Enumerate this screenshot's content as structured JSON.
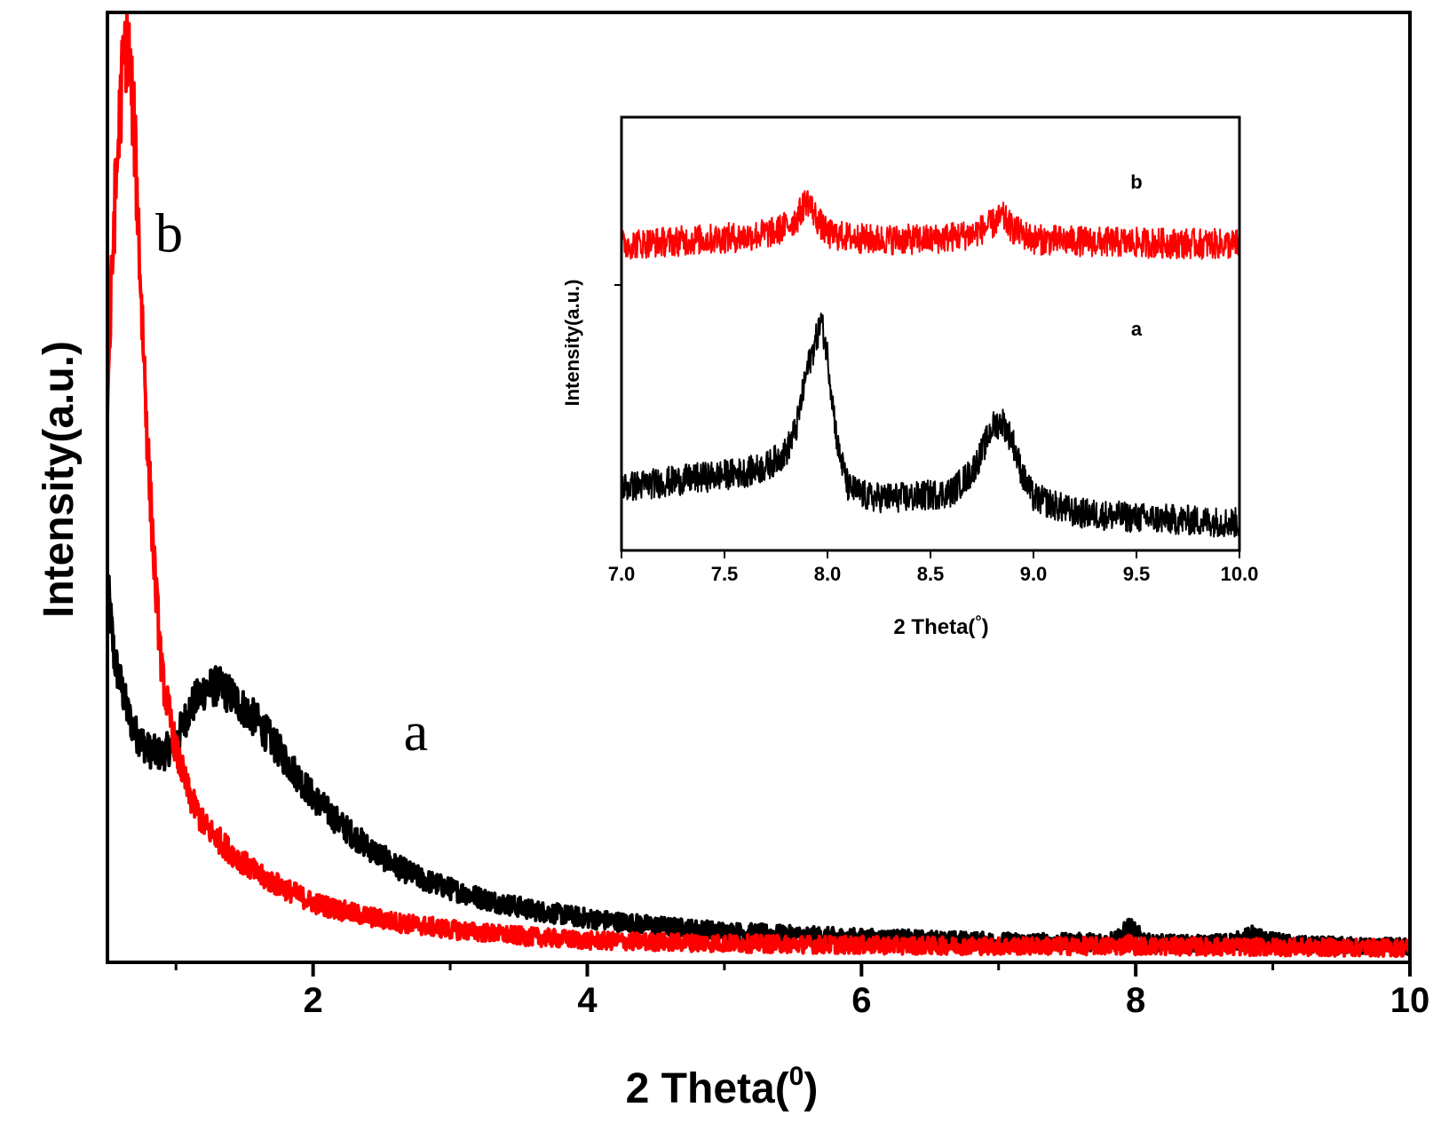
{
  "chart_data": [
    {
      "type": "line",
      "id": "main",
      "title": "",
      "xlabel": "2 Theta(",
      "xlabel_superscript": "0",
      "xlabel_suffix": ")",
      "ylabel": "Intensity(a.u.)",
      "xlim": [
        0.5,
        10
      ],
      "ylim": [
        0,
        100
      ],
      "x_ticks": [
        2,
        4,
        6,
        8,
        10
      ],
      "x_tick_labels": [
        "2",
        "4",
        "6",
        "8",
        "10"
      ],
      "x_minor_ticks": [
        1,
        3,
        5,
        7,
        9
      ],
      "grid": false,
      "series": [
        {
          "name": "a",
          "color": "#000000",
          "points": [
            [
              0.5,
              40
            ],
            [
              0.55,
              32
            ],
            [
              0.6,
              29
            ],
            [
              0.65,
              26
            ],
            [
              0.7,
              24
            ],
            [
              0.8,
              22
            ],
            [
              0.9,
              21.5
            ],
            [
              1.0,
              23
            ],
            [
              1.1,
              26.5
            ],
            [
              1.2,
              28.5
            ],
            [
              1.3,
              29
            ],
            [
              1.4,
              28
            ],
            [
              1.5,
              26.5
            ],
            [
              1.6,
              25
            ],
            [
              1.7,
              23
            ],
            [
              1.8,
              21
            ],
            [
              1.9,
              19
            ],
            [
              2.0,
              17
            ],
            [
              2.2,
              14
            ],
            [
              2.4,
              11.5
            ],
            [
              2.6,
              9.5
            ],
            [
              2.8,
              8
            ],
            [
              3.0,
              7
            ],
            [
              3.3,
              5.7
            ],
            [
              3.6,
              4.7
            ],
            [
              4.0,
              3.8
            ],
            [
              4.5,
              3
            ],
            [
              5.0,
              2.4
            ],
            [
              5.5,
              2
            ],
            [
              6.0,
              1.7
            ],
            [
              6.5,
              1.5
            ],
            [
              7.0,
              1.3
            ],
            [
              7.5,
              1.2
            ],
            [
              7.8,
              1.3
            ],
            [
              7.9,
              2
            ],
            [
              7.95,
              3
            ],
            [
              8.0,
              2.2
            ],
            [
              8.1,
              1.1
            ],
            [
              8.5,
              1
            ],
            [
              8.75,
              1.4
            ],
            [
              8.85,
              2
            ],
            [
              8.95,
              1.4
            ],
            [
              9.2,
              0.9
            ],
            [
              9.6,
              0.8
            ],
            [
              10.0,
              0.7
            ]
          ]
        },
        {
          "name": "b",
          "color": "#ff0000",
          "points": [
            [
              0.5,
              60
            ],
            [
              0.55,
              80
            ],
            [
              0.6,
              93
            ],
            [
              0.62,
              97
            ],
            [
              0.64,
              99
            ],
            [
              0.66,
              97
            ],
            [
              0.7,
              88
            ],
            [
              0.75,
              70
            ],
            [
              0.8,
              53
            ],
            [
              0.85,
              40
            ],
            [
              0.9,
              30
            ],
            [
              1.0,
              22
            ],
            [
              1.1,
              17
            ],
            [
              1.2,
              14
            ],
            [
              1.4,
              11
            ],
            [
              1.6,
              8.5
            ],
            [
              1.8,
              7
            ],
            [
              2.0,
              5.5
            ],
            [
              2.3,
              4.3
            ],
            [
              2.6,
              3.4
            ],
            [
              3.0,
              2.6
            ],
            [
              3.5,
              1.9
            ],
            [
              4.0,
              1.4
            ],
            [
              5.0,
              1.1
            ],
            [
              6.0,
              0.9
            ],
            [
              7.0,
              0.8
            ],
            [
              7.9,
              0.8
            ],
            [
              7.95,
              1.2
            ],
            [
              8.0,
              0.8
            ],
            [
              8.8,
              0.7
            ],
            [
              10.0,
              0.6
            ]
          ]
        }
      ],
      "annotations": [
        {
          "text": "b",
          "x": 0.95,
          "y": 76
        },
        {
          "text": "a",
          "x": 2.75,
          "y": 22
        }
      ]
    },
    {
      "type": "line",
      "id": "inset",
      "title": "",
      "xlabel": "2 Theta(",
      "xlabel_superscript": "°",
      "xlabel_suffix": ")",
      "ylabel": "Intensity(a.u.)",
      "xlim": [
        7.0,
        10.0
      ],
      "ylim": [
        0,
        100
      ],
      "x_ticks": [
        7.0,
        7.5,
        8.0,
        8.5,
        9.0,
        9.5,
        10.0
      ],
      "x_tick_labels": [
        "7.0",
        "7.5",
        "8.0",
        "8.5",
        "9.0",
        "9.5",
        "10.0"
      ],
      "y_ticks": [
        50
      ],
      "grid": false,
      "series": [
        {
          "name": "a",
          "color": "#000000",
          "points": [
            [
              7.0,
              10
            ],
            [
              7.2,
              11
            ],
            [
              7.4,
              12
            ],
            [
              7.6,
              13
            ],
            [
              7.7,
              14
            ],
            [
              7.8,
              17
            ],
            [
              7.85,
              22
            ],
            [
              7.9,
              33
            ],
            [
              7.95,
              40
            ],
            [
              7.97,
              43
            ],
            [
              8.0,
              36
            ],
            [
              8.05,
              18
            ],
            [
              8.1,
              10
            ],
            [
              8.2,
              8
            ],
            [
              8.4,
              8
            ],
            [
              8.6,
              9
            ],
            [
              8.7,
              13
            ],
            [
              8.75,
              17
            ],
            [
              8.8,
              22
            ],
            [
              8.85,
              23
            ],
            [
              8.9,
              19
            ],
            [
              8.95,
              12
            ],
            [
              9.0,
              8
            ],
            [
              9.2,
              5
            ],
            [
              9.5,
              4
            ],
            [
              10.0,
              3
            ]
          ]
        },
        {
          "name": "b",
          "color": "#ff0000",
          "points": [
            [
              7.0,
              58
            ],
            [
              7.2,
              58.5
            ],
            [
              7.4,
              59
            ],
            [
              7.6,
              59.5
            ],
            [
              7.75,
              60.5
            ],
            [
              7.85,
              63
            ],
            [
              7.9,
              67
            ],
            [
              7.95,
              63
            ],
            [
              8.0,
              60
            ],
            [
              8.2,
              59
            ],
            [
              8.5,
              59
            ],
            [
              8.7,
              60
            ],
            [
              8.8,
              62
            ],
            [
              8.85,
              63.5
            ],
            [
              8.9,
              61
            ],
            [
              9.0,
              59
            ],
            [
              9.3,
              58.5
            ],
            [
              10.0,
              58
            ]
          ]
        }
      ],
      "annotations": [
        {
          "text": "b",
          "x": 9.5,
          "y": 69
        },
        {
          "text": "a",
          "x": 9.5,
          "y": 40
        }
      ]
    }
  ]
}
